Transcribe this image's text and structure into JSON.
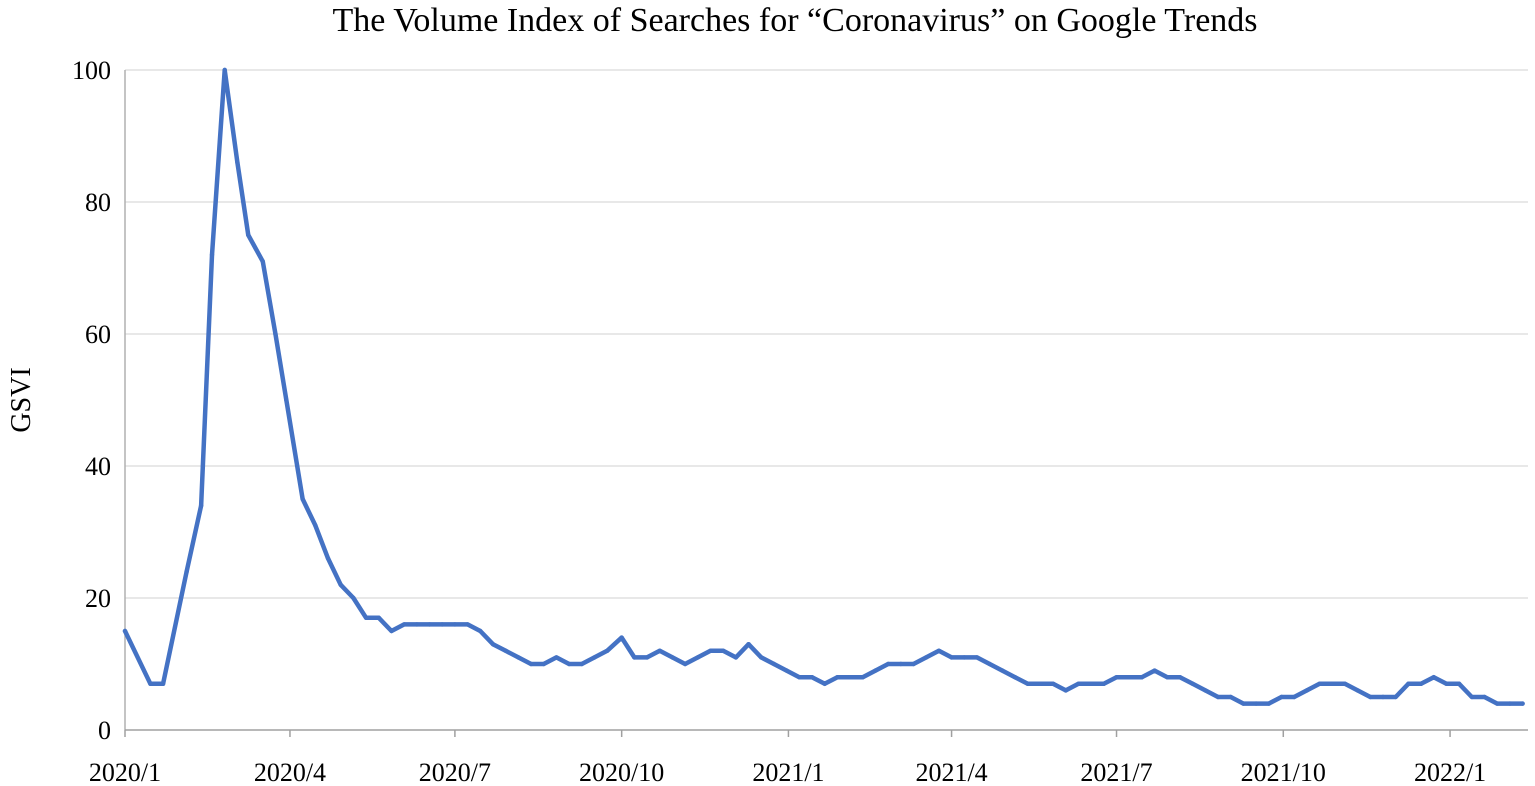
{
  "chart_data": {
    "type": "line",
    "title": "The Volume Index of Searches for “Coronavirus” on Google Trends",
    "xlabel": "",
    "ylabel": "GSVI",
    "ylim": [
      0,
      100
    ],
    "yticks": [
      0,
      20,
      40,
      60,
      80,
      100
    ],
    "x_start": "2020-01-01",
    "x_end": "2022-02-13",
    "x_ticks": [
      {
        "date": "2020-01-01",
        "label": "2020/1"
      },
      {
        "date": "2020-04-01",
        "label": "2020/4"
      },
      {
        "date": "2020-07-01",
        "label": "2020/7"
      },
      {
        "date": "2020-10-01",
        "label": "2020/10"
      },
      {
        "date": "2021-01-01",
        "label": "2021/1"
      },
      {
        "date": "2021-04-01",
        "label": "2021/4"
      },
      {
        "date": "2021-07-01",
        "label": "2021/7"
      },
      {
        "date": "2021-10-01",
        "label": "2021/10"
      },
      {
        "date": "2022-01-01",
        "label": "2022/1"
      }
    ],
    "grid": "horizontal",
    "legend": "none",
    "line_color": "#4472C4",
    "series": [
      {
        "x": [
          "2020-01-01",
          "2020-01-15",
          "2020-01-22",
          "2020-02-04",
          "2020-02-12",
          "2020-02-18",
          "2020-02-25",
          "2020-03-03",
          "2020-03-09",
          "2020-03-17",
          "2020-03-24",
          "2020-03-30",
          "2020-04-08",
          "2020-04-15",
          "2020-04-22",
          "2020-04-29",
          "2020-05-06",
          "2020-05-13",
          "2020-05-20",
          "2020-05-27",
          "2020-06-03",
          "2020-06-10",
          "2020-06-17",
          "2020-06-24",
          "2020-07-01",
          "2020-07-08",
          "2020-07-15",
          "2020-07-22",
          "2020-07-29",
          "2020-08-05",
          "2020-08-12",
          "2020-08-19",
          "2020-08-26",
          "2020-09-02",
          "2020-09-09",
          "2020-09-16",
          "2020-09-23",
          "2020-10-01",
          "2020-10-08",
          "2020-10-15",
          "2020-10-22",
          "2020-10-29",
          "2020-11-05",
          "2020-11-12",
          "2020-11-19",
          "2020-11-26",
          "2020-12-03",
          "2020-12-10",
          "2020-12-17",
          "2020-12-24",
          "2020-12-31",
          "2021-01-07",
          "2021-01-14",
          "2021-01-21",
          "2021-01-28",
          "2021-02-04",
          "2021-02-11",
          "2021-02-18",
          "2021-02-25",
          "2021-03-04",
          "2021-03-11",
          "2021-03-18",
          "2021-03-25",
          "2021-04-01",
          "2021-04-08",
          "2021-04-15",
          "2021-04-22",
          "2021-04-29",
          "2021-05-06",
          "2021-05-13",
          "2021-05-20",
          "2021-05-27",
          "2021-06-03",
          "2021-06-10",
          "2021-06-17",
          "2021-06-24",
          "2021-07-01",
          "2021-07-08",
          "2021-07-15",
          "2021-07-22",
          "2021-07-29",
          "2021-08-05",
          "2021-08-12",
          "2021-08-19",
          "2021-08-26",
          "2021-09-02",
          "2021-09-09",
          "2021-09-16",
          "2021-09-23",
          "2021-09-30",
          "2021-10-07",
          "2021-10-14",
          "2021-10-21",
          "2021-10-28",
          "2021-11-04",
          "2021-11-11",
          "2021-11-18",
          "2021-11-25",
          "2021-12-02",
          "2021-12-09",
          "2021-12-16",
          "2021-12-23",
          "2021-12-30",
          "2022-01-06",
          "2022-01-13",
          "2022-01-20",
          "2022-01-27",
          "2022-02-03",
          "2022-02-10"
        ],
        "y": [
          15,
          7,
          7,
          24,
          34,
          72,
          100,
          86,
          75,
          71,
          60,
          50,
          35,
          31,
          26,
          22,
          20,
          17,
          17,
          15,
          16,
          16,
          16,
          16,
          16,
          16,
          15,
          13,
          12,
          11,
          10,
          10,
          11,
          10,
          10,
          11,
          12,
          14,
          11,
          11,
          12,
          11,
          10,
          11,
          12,
          12,
          11,
          13,
          11,
          10,
          9,
          8,
          8,
          7,
          8,
          8,
          8,
          9,
          10,
          10,
          10,
          11,
          12,
          11,
          11,
          11,
          10,
          9,
          8,
          7,
          7,
          7,
          6,
          7,
          7,
          7,
          8,
          8,
          8,
          9,
          8,
          8,
          7,
          6,
          5,
          5,
          4,
          4,
          4,
          5,
          5,
          6,
          7,
          7,
          7,
          6,
          5,
          5,
          5,
          7,
          7,
          8,
          7,
          7,
          5,
          5,
          4,
          4,
          4
        ]
      }
    ]
  }
}
